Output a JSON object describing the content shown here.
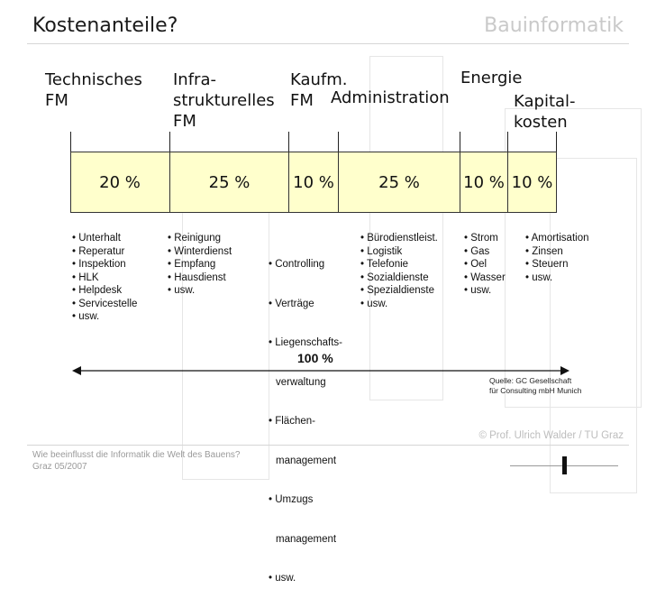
{
  "header": {
    "title": "Kostenanteile?",
    "brand": "Bauinformatik"
  },
  "categories": [
    {
      "label": "Technisches FM",
      "lines": [
        "Technisches",
        "FM"
      ],
      "percent": "20 %",
      "items": [
        "• Unterhalt",
        "• Reperatur",
        "• Inspektion",
        "• HLK",
        "• Helpdesk",
        "• Servicestelle",
        "• usw."
      ]
    },
    {
      "label": "Infra-strukturelles FM",
      "lines": [
        "Infra-",
        "strukturelles",
        "FM"
      ],
      "percent": "25 %",
      "items": [
        "• Reinigung",
        "• Winterdienst",
        "• Empfang",
        "• Hausdienst",
        "• usw."
      ]
    },
    {
      "label": "Kaufm. FM",
      "lines": [
        "Kaufm.",
        "FM"
      ],
      "percent": "10 %",
      "items": [
        "• Controlling",
        "• Verträge",
        "• Liegenschafts-",
        "  verwaltung",
        "• Flächen-",
        "  management",
        "• Umzugs",
        "  management",
        "• usw."
      ]
    },
    {
      "label": "Administration",
      "lines": [
        "Administration"
      ],
      "percent": "25 %",
      "items": [
        "• Bürodienstleist.",
        "• Logistik",
        "• Telefonie",
        "• Sozialdienste",
        "• Spezialdienste",
        "• usw."
      ]
    },
    {
      "label": "Energie",
      "lines": [
        "Energie"
      ],
      "percent": "10 %",
      "items": [
        "• Strom",
        "• Gas",
        "• Oel",
        "• Wasser",
        "• usw."
      ]
    },
    {
      "label": "Kapital-kosten",
      "lines": [
        "Kapital-",
        "kosten"
      ],
      "percent": "10 %",
      "items": [
        "• Amortisation",
        "• Zinsen",
        "• Steuern",
        "• usw."
      ]
    }
  ],
  "total": "100 %",
  "source": [
    "Quelle: GC Gesellschaft",
    "für Consulting mbH Munich"
  ],
  "copyright": "© Prof. Ulrich Walder / TU Graz",
  "footer": [
    "Wie beeinflusst die Informatik die Welt des Bauens?",
    "Graz 05/2007"
  ],
  "colors": {
    "segment_fill": "#ffffcc",
    "brand": "#c9c9c9",
    "text": "#111111"
  }
}
